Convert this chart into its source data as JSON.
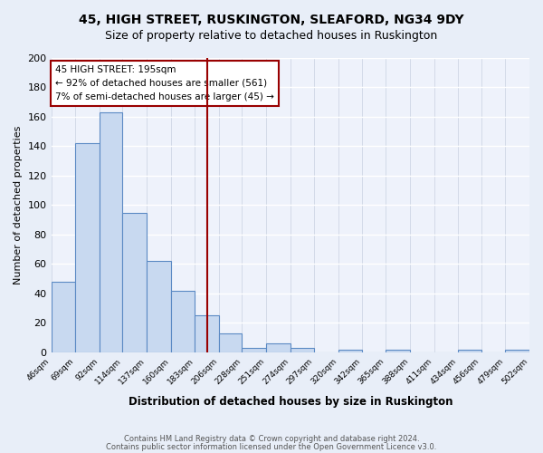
{
  "title": "45, HIGH STREET, RUSKINGTON, SLEAFORD, NG34 9DY",
  "subtitle": "Size of property relative to detached houses in Ruskington",
  "xlabel": "Distribution of detached houses by size in Ruskington",
  "ylabel": "Number of detached properties",
  "bar_values": [
    48,
    142,
    163,
    95,
    62,
    42,
    25,
    13,
    3,
    6,
    3,
    0,
    2,
    0,
    2,
    0,
    0,
    2,
    0,
    2
  ],
  "bin_edges": [
    46,
    69,
    92,
    114,
    137,
    160,
    183,
    206,
    228,
    251,
    274,
    297,
    320,
    342,
    365,
    388,
    411,
    434,
    456,
    479,
    502
  ],
  "tick_labels": [
    "46sqm",
    "69sqm",
    "92sqm",
    "114sqm",
    "137sqm",
    "160sqm",
    "183sqm",
    "206sqm",
    "228sqm",
    "251sqm",
    "274sqm",
    "297sqm",
    "320sqm",
    "342sqm",
    "365sqm",
    "388sqm",
    "411sqm",
    "434sqm",
    "456sqm",
    "479sqm",
    "502sqm"
  ],
  "bar_color": "#c8d9f0",
  "bar_edge_color": "#5b8ac4",
  "vline_x": 195,
  "vline_color": "#990000",
  "annotation_title": "45 HIGH STREET: 195sqm",
  "annotation_line1": "← 92% of detached houses are smaller (561)",
  "annotation_line2": "7% of semi-detached houses are larger (45) →",
  "annotation_box_color": "#990000",
  "annotation_bg": "#ffffff",
  "ylim": [
    0,
    200
  ],
  "yticks": [
    0,
    20,
    40,
    60,
    80,
    100,
    120,
    140,
    160,
    180,
    200
  ],
  "footer1": "Contains HM Land Registry data © Crown copyright and database right 2024.",
  "footer2": "Contains public sector information licensed under the Open Government Licence v3.0.",
  "bg_color": "#e8eef8",
  "plot_bg_color": "#eef2fb"
}
